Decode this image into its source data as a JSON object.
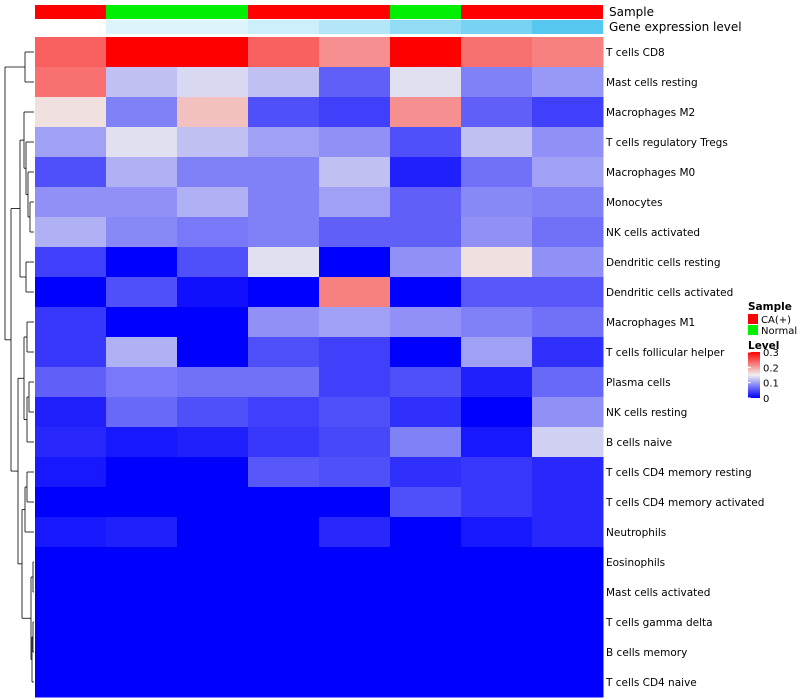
{
  "chart_data": {
    "type": "heatmap",
    "title": "",
    "annotation_tracks": [
      {
        "name": "Sample",
        "values": [
          "CA(+)",
          "Normal",
          "Normal",
          "CA(+)",
          "CA(+)",
          "Normal",
          "CA(+)",
          "CA(+)"
        ],
        "colors": {
          "CA(+)": "#ff0000",
          "Normal": "#00ee00"
        }
      },
      {
        "name": "Gene expression level",
        "values": [
          0.0,
          0.2,
          0.2,
          0.3,
          0.45,
          0.65,
          0.8,
          1.0
        ],
        "low_color": "#ffffff",
        "high_color": "#56c8f0"
      }
    ],
    "rows": [
      "T cells CD8",
      "Mast cells resting",
      "Macrophages M2",
      "T cells regulatory  Tregs",
      "Macrophages M0",
      "Monocytes",
      "NK cells activated",
      "Dendritic cells resting",
      "Dendritic cells activated",
      "Macrophages M1",
      "T cells follicular helper",
      "Plasma cells",
      "NK cells resting",
      "B cells naive",
      "T cells CD4 memory resting",
      "T cells CD4 memory activated",
      "Neutrophils",
      "Eosinophils",
      "Mast cells activated",
      "T cells gamma delta",
      "B cells memory",
      "T cells CD4 naive"
    ],
    "values": [
      [
        0.24,
        0.3,
        0.3,
        0.24,
        0.21,
        0.3,
        0.23,
        0.22
      ],
      [
        0.23,
        0.12,
        0.135,
        0.12,
        0.06,
        0.14,
        0.08,
        0.095
      ],
      [
        0.16,
        0.08,
        0.18,
        0.05,
        0.04,
        0.21,
        0.06,
        0.04
      ],
      [
        0.1,
        0.14,
        0.12,
        0.1,
        0.09,
        0.05,
        0.12,
        0.09
      ],
      [
        0.05,
        0.11,
        0.08,
        0.08,
        0.12,
        0.02,
        0.07,
        0.1
      ],
      [
        0.09,
        0.09,
        0.11,
        0.08,
        0.1,
        0.06,
        0.085,
        0.08
      ],
      [
        0.11,
        0.085,
        0.075,
        0.08,
        0.06,
        0.06,
        0.09,
        0.07
      ],
      [
        0.04,
        0.0,
        0.05,
        0.14,
        0.0,
        0.09,
        0.16,
        0.09
      ],
      [
        0.0,
        0.05,
        0.01,
        0.0,
        0.22,
        0.0,
        0.055,
        0.055
      ],
      [
        0.035,
        0.0,
        0.0,
        0.09,
        0.1,
        0.09,
        0.08,
        0.07
      ],
      [
        0.035,
        0.11,
        0.0,
        0.05,
        0.04,
        0.0,
        0.1,
        0.03
      ],
      [
        0.06,
        0.075,
        0.07,
        0.07,
        0.04,
        0.05,
        0.02,
        0.065
      ],
      [
        0.02,
        0.065,
        0.05,
        0.04,
        0.05,
        0.03,
        0.0,
        0.09
      ],
      [
        0.025,
        0.015,
        0.02,
        0.035,
        0.045,
        0.08,
        0.015,
        0.13
      ],
      [
        0.015,
        0.0,
        0.0,
        0.055,
        0.05,
        0.03,
        0.035,
        0.025
      ],
      [
        0.0,
        0.0,
        0.0,
        0.0,
        0.0,
        0.05,
        0.035,
        0.025
      ],
      [
        0.015,
        0.02,
        0.0,
        0.0,
        0.025,
        0.0,
        0.015,
        0.025
      ],
      [
        0.0,
        0.0,
        0.0,
        0.0,
        0.0,
        0.0,
        0.0,
        0.0
      ],
      [
        0.0,
        0.0,
        0.0,
        0.0,
        0.0,
        0.0,
        0.0,
        0.0
      ],
      [
        0.0,
        0.0,
        0.0,
        0.0,
        0.0,
        0.0,
        0.0,
        0.0
      ],
      [
        0.0,
        0.0,
        0.0,
        0.0,
        0.0,
        0.0,
        0.0,
        0.0
      ],
      [
        0.0,
        0.0,
        0.0,
        0.0,
        0.0,
        0.0,
        0.0,
        0.0
      ]
    ],
    "color_scale": {
      "min": 0,
      "mid": 0.15,
      "max": 0.3,
      "low_color": "#0000ff",
      "mid_color": "#f0f0f0",
      "high_color": "#ff0000"
    },
    "legend": {
      "placement": "right",
      "sample_title": "Sample",
      "sample_entries": [
        {
          "label": "CA(+)",
          "color": "#ff0000"
        },
        {
          "label": "Normal",
          "color": "#00ee00"
        }
      ],
      "level_title": "Level",
      "level_ticks": [
        "0.3",
        "0.2",
        "0.1",
        "0"
      ]
    },
    "dendrogram": "rows"
  }
}
